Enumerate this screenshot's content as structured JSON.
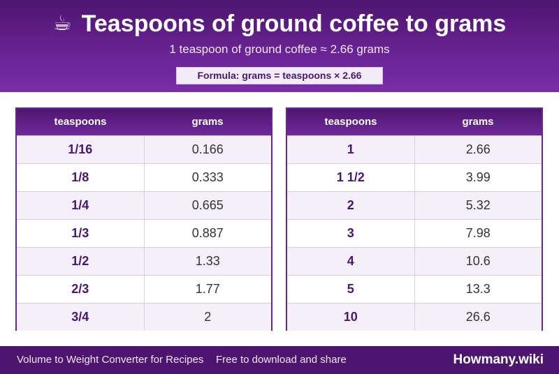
{
  "header": {
    "icon": "☕",
    "title": "Teaspoons of ground coffee to grams",
    "subtitle": "1 teaspoon of ground coffee ≈ 2.66 grams",
    "formula": "Formula: grams = teaspoons × 2.66"
  },
  "tables": [
    {
      "headers": [
        "teaspoons",
        "grams"
      ],
      "rows": [
        [
          "1/16",
          "0.166"
        ],
        [
          "1/8",
          "0.333"
        ],
        [
          "1/4",
          "0.665"
        ],
        [
          "1/3",
          "0.887"
        ],
        [
          "1/2",
          "1.33"
        ],
        [
          "2/3",
          "1.77"
        ],
        [
          "3/4",
          "2"
        ]
      ]
    },
    {
      "headers": [
        "teaspoons",
        "grams"
      ],
      "rows": [
        [
          "1",
          "2.66"
        ],
        [
          "1 1/2",
          "3.99"
        ],
        [
          "2",
          "5.32"
        ],
        [
          "3",
          "7.98"
        ],
        [
          "4",
          "10.6"
        ],
        [
          "5",
          "13.3"
        ],
        [
          "10",
          "26.6"
        ]
      ]
    }
  ],
  "footer": {
    "left_text": "Volume to Weight Converter for Recipes",
    "middle_text": "Free to download and share",
    "brand": "Howmany.wiki"
  }
}
